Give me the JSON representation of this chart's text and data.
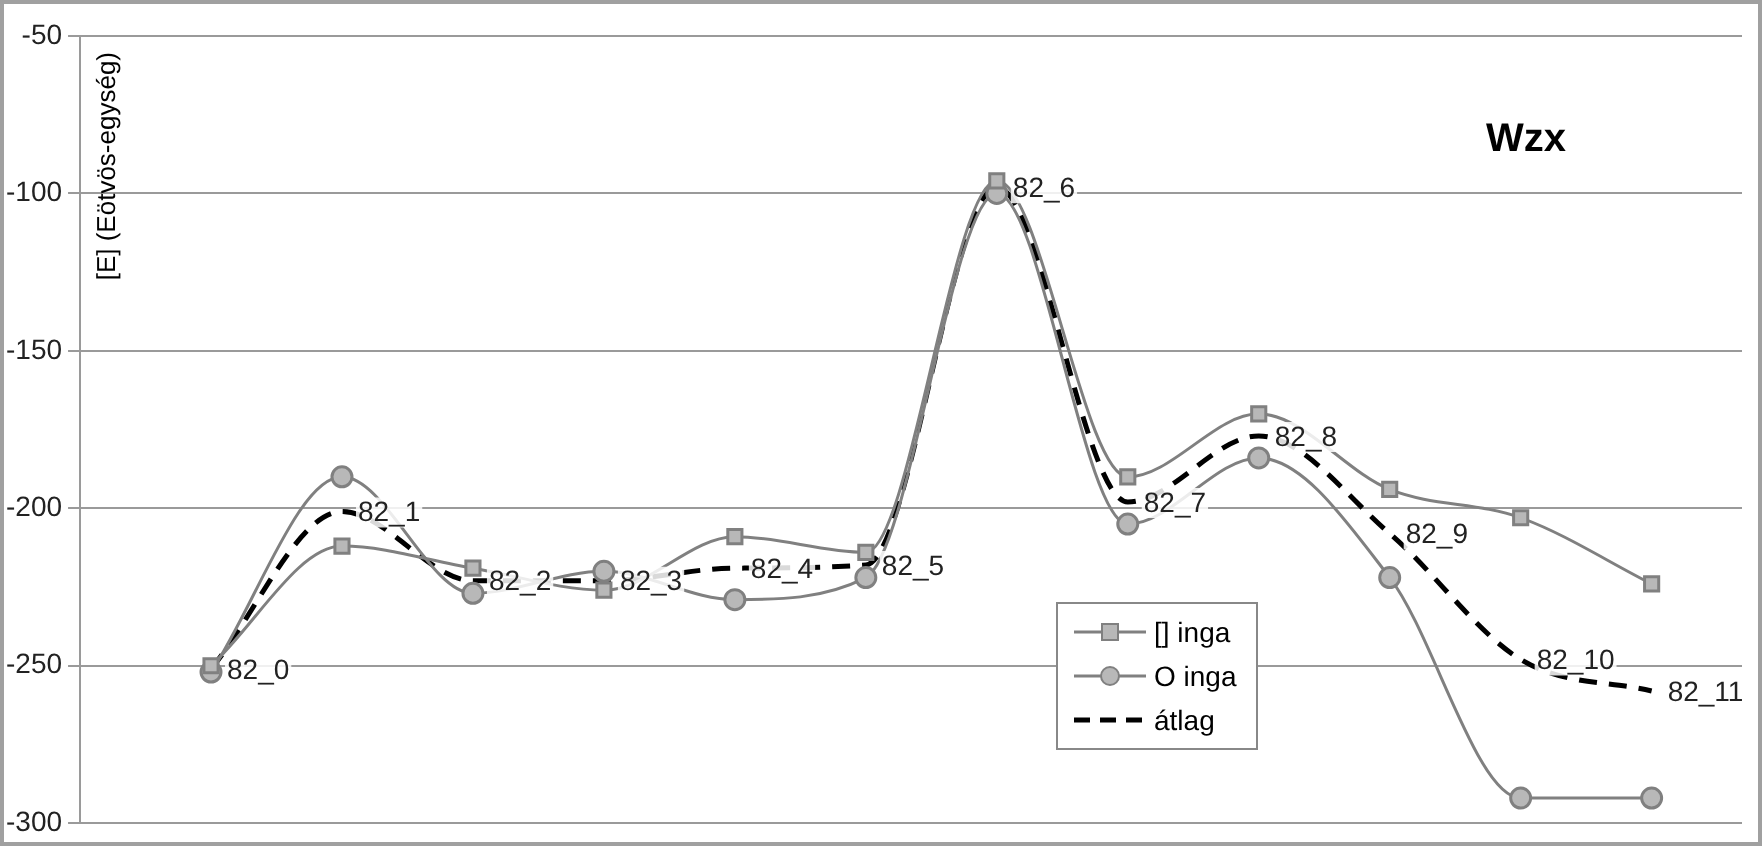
{
  "chart_data": {
    "type": "line",
    "title": "Wzx",
    "ylabel": "[E] (Eötvös-egység)",
    "categories": [
      "82_0",
      "82_1",
      "82_2",
      "82_3",
      "82_4",
      "82_5",
      "82_6",
      "82_7",
      "82_8",
      "82_9",
      "82_10",
      "82_11"
    ],
    "series": [
      {
        "name": "[] inga",
        "color": "#808080",
        "marker": "square",
        "line_style": "solid",
        "values": [
          -250,
          -212,
          -219,
          -226,
          -209,
          -214,
          -96,
          -190,
          -170,
          -194,
          -203,
          -224
        ]
      },
      {
        "name": "O inga",
        "color": "#808080",
        "marker": "circle",
        "line_style": "solid",
        "values": [
          -252,
          -190,
          -227,
          -220,
          -229,
          -222,
          -100,
          -205,
          -184,
          -222,
          -292,
          -292
        ]
      },
      {
        "name": "átlag",
        "color": "#000000",
        "marker": "none",
        "line_style": "dashed",
        "values": [
          -251,
          -201,
          -223,
          -223,
          -219,
          -218,
          -98,
          -198,
          -177,
          -208,
          -248,
          -258
        ]
      }
    ],
    "ylim": [
      -300,
      -50
    ],
    "yticks": [
      -300,
      -250,
      -200,
      -150,
      -100,
      -50
    ],
    "grid": "y",
    "legend": "bottom",
    "tick_labels": "y"
  }
}
